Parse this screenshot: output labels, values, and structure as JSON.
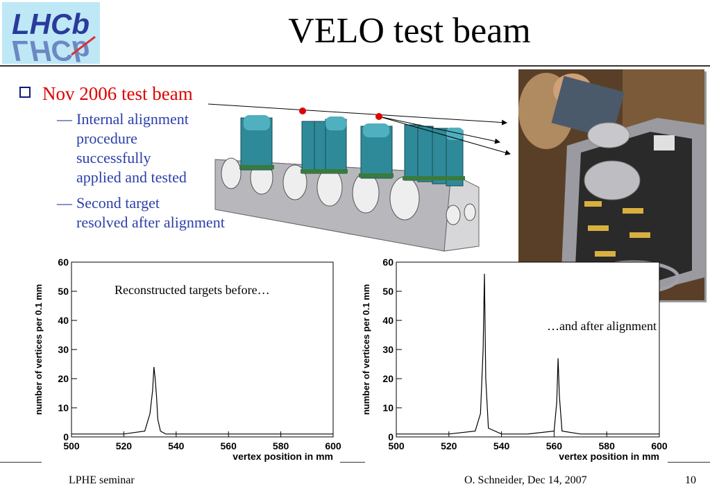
{
  "slide": {
    "title": "VELO test beam",
    "logo_text": "LHCb",
    "bullet": "Nov 2006 test beam",
    "subbullets": [
      [
        "Internal alignment",
        "procedure",
        "successfully",
        "applied and tested"
      ],
      [
        "Second target",
        "resolved after alignment"
      ]
    ],
    "caption_before": "Reconstructed targets before…",
    "caption_after": "…and after alignment"
  },
  "footer": {
    "left": "LPHE seminar",
    "center": "O. Schneider, Dec 14, 2007",
    "page": "10"
  },
  "colors": {
    "bullet_red": "#e00000",
    "sub_blue": "#2b3fa8",
    "logo_bg": "#bfe8f6",
    "logo_text": "#2a3a9c"
  },
  "chart_data": [
    {
      "type": "line",
      "title": "",
      "xlabel": "vertex position in mm",
      "ylabel": "number of vertices per 0.1 mm",
      "xlim": [
        500,
        600
      ],
      "ylim": [
        0,
        60
      ],
      "xticks": [
        "500",
        "520",
        "540",
        "560",
        "580",
        "600"
      ],
      "yticks": [
        "0",
        "10",
        "20",
        "30",
        "40",
        "50",
        "60"
      ],
      "x": [
        500,
        510,
        520,
        528,
        530,
        531,
        531.5,
        532,
        532.5,
        533,
        534,
        536,
        540,
        560,
        580,
        600
      ],
      "y": [
        1,
        1,
        1,
        2,
        8,
        16,
        24,
        20,
        14,
        6,
        2,
        1,
        1,
        1,
        1,
        1
      ]
    },
    {
      "type": "line",
      "title": "",
      "xlabel": "vertex position in mm",
      "ylabel": "number of vertices per 0.1 mm",
      "xlim": [
        500,
        600
      ],
      "ylim": [
        0,
        60
      ],
      "xticks": [
        "500",
        "520",
        "540",
        "560",
        "580",
        "600"
      ],
      "yticks": [
        "0",
        "10",
        "20",
        "30",
        "40",
        "50",
        "60"
      ],
      "x": [
        500,
        510,
        520,
        530,
        532,
        533,
        533.5,
        534,
        535,
        540,
        550,
        560,
        561,
        561.5,
        562,
        563,
        570,
        580,
        600
      ],
      "y": [
        1,
        1,
        1,
        2,
        8,
        30,
        56,
        20,
        3,
        1,
        1,
        2,
        12,
        27,
        14,
        2,
        1,
        1,
        1
      ]
    }
  ]
}
